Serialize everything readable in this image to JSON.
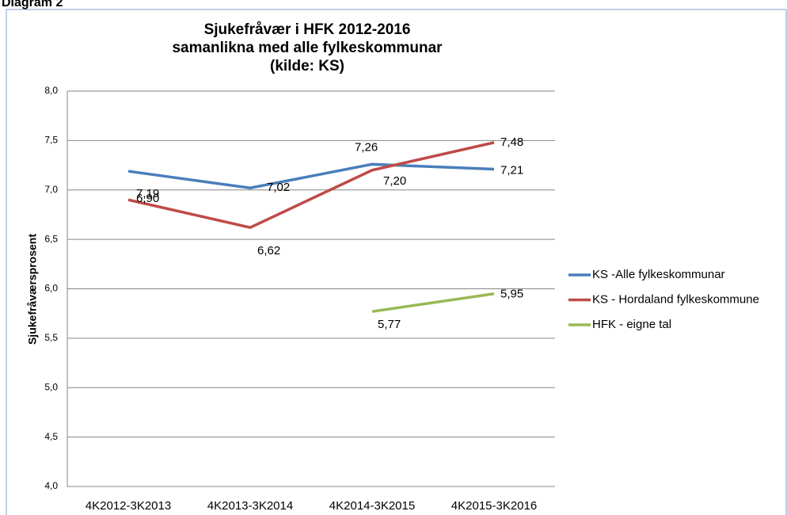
{
  "heading": "Diagram 2",
  "chart_data": {
    "type": "line",
    "title": "Sjukefråvær  i HFK 2012-2016",
    "subtitle": "samanlikna med alle fylkeskommunar",
    "source": "(kilde: KS)",
    "y_label": "Sjukefråværsprosent",
    "categories": [
      "4K2012-3K2013",
      "4K2013-3K2014",
      "4K2014-3K2015",
      "4K2015-3K2016"
    ],
    "series": [
      {
        "name": "KS -Alle fylkeskommunar",
        "color": "#4a7ebb",
        "values": [
          7.19,
          7.02,
          7.26,
          7.21
        ],
        "value_labels": [
          "7,19",
          "7,02",
          "7,26",
          "7,21"
        ]
      },
      {
        "name": "KS - Hordaland fylkeskommune",
        "color": "#be4b48",
        "values": [
          6.9,
          6.62,
          7.2,
          7.48
        ],
        "value_labels": [
          "6,90",
          "6,62",
          "7,20",
          "7,48"
        ]
      },
      {
        "name": "HFK - eigne tal",
        "color": "#98b954",
        "values": [
          null,
          null,
          5.77,
          5.95
        ],
        "value_labels": [
          null,
          null,
          "5,77",
          "5,95"
        ]
      }
    ],
    "ylim": [
      4,
      8
    ],
    "yticks": [
      {
        "value": 4,
        "label": "4,0"
      },
      {
        "value": 4.5,
        "label": "4,5"
      },
      {
        "value": 5,
        "label": "5,0"
      },
      {
        "value": 5.5,
        "label": "5,5"
      },
      {
        "value": 6,
        "label": "6,0"
      },
      {
        "value": 6.5,
        "label": "6,5"
      },
      {
        "value": 7,
        "label": "7,0"
      },
      {
        "value": 7.5,
        "label": "7,5"
      },
      {
        "value": 8,
        "label": "8,0"
      }
    ],
    "grid": true,
    "legend": "right"
  }
}
